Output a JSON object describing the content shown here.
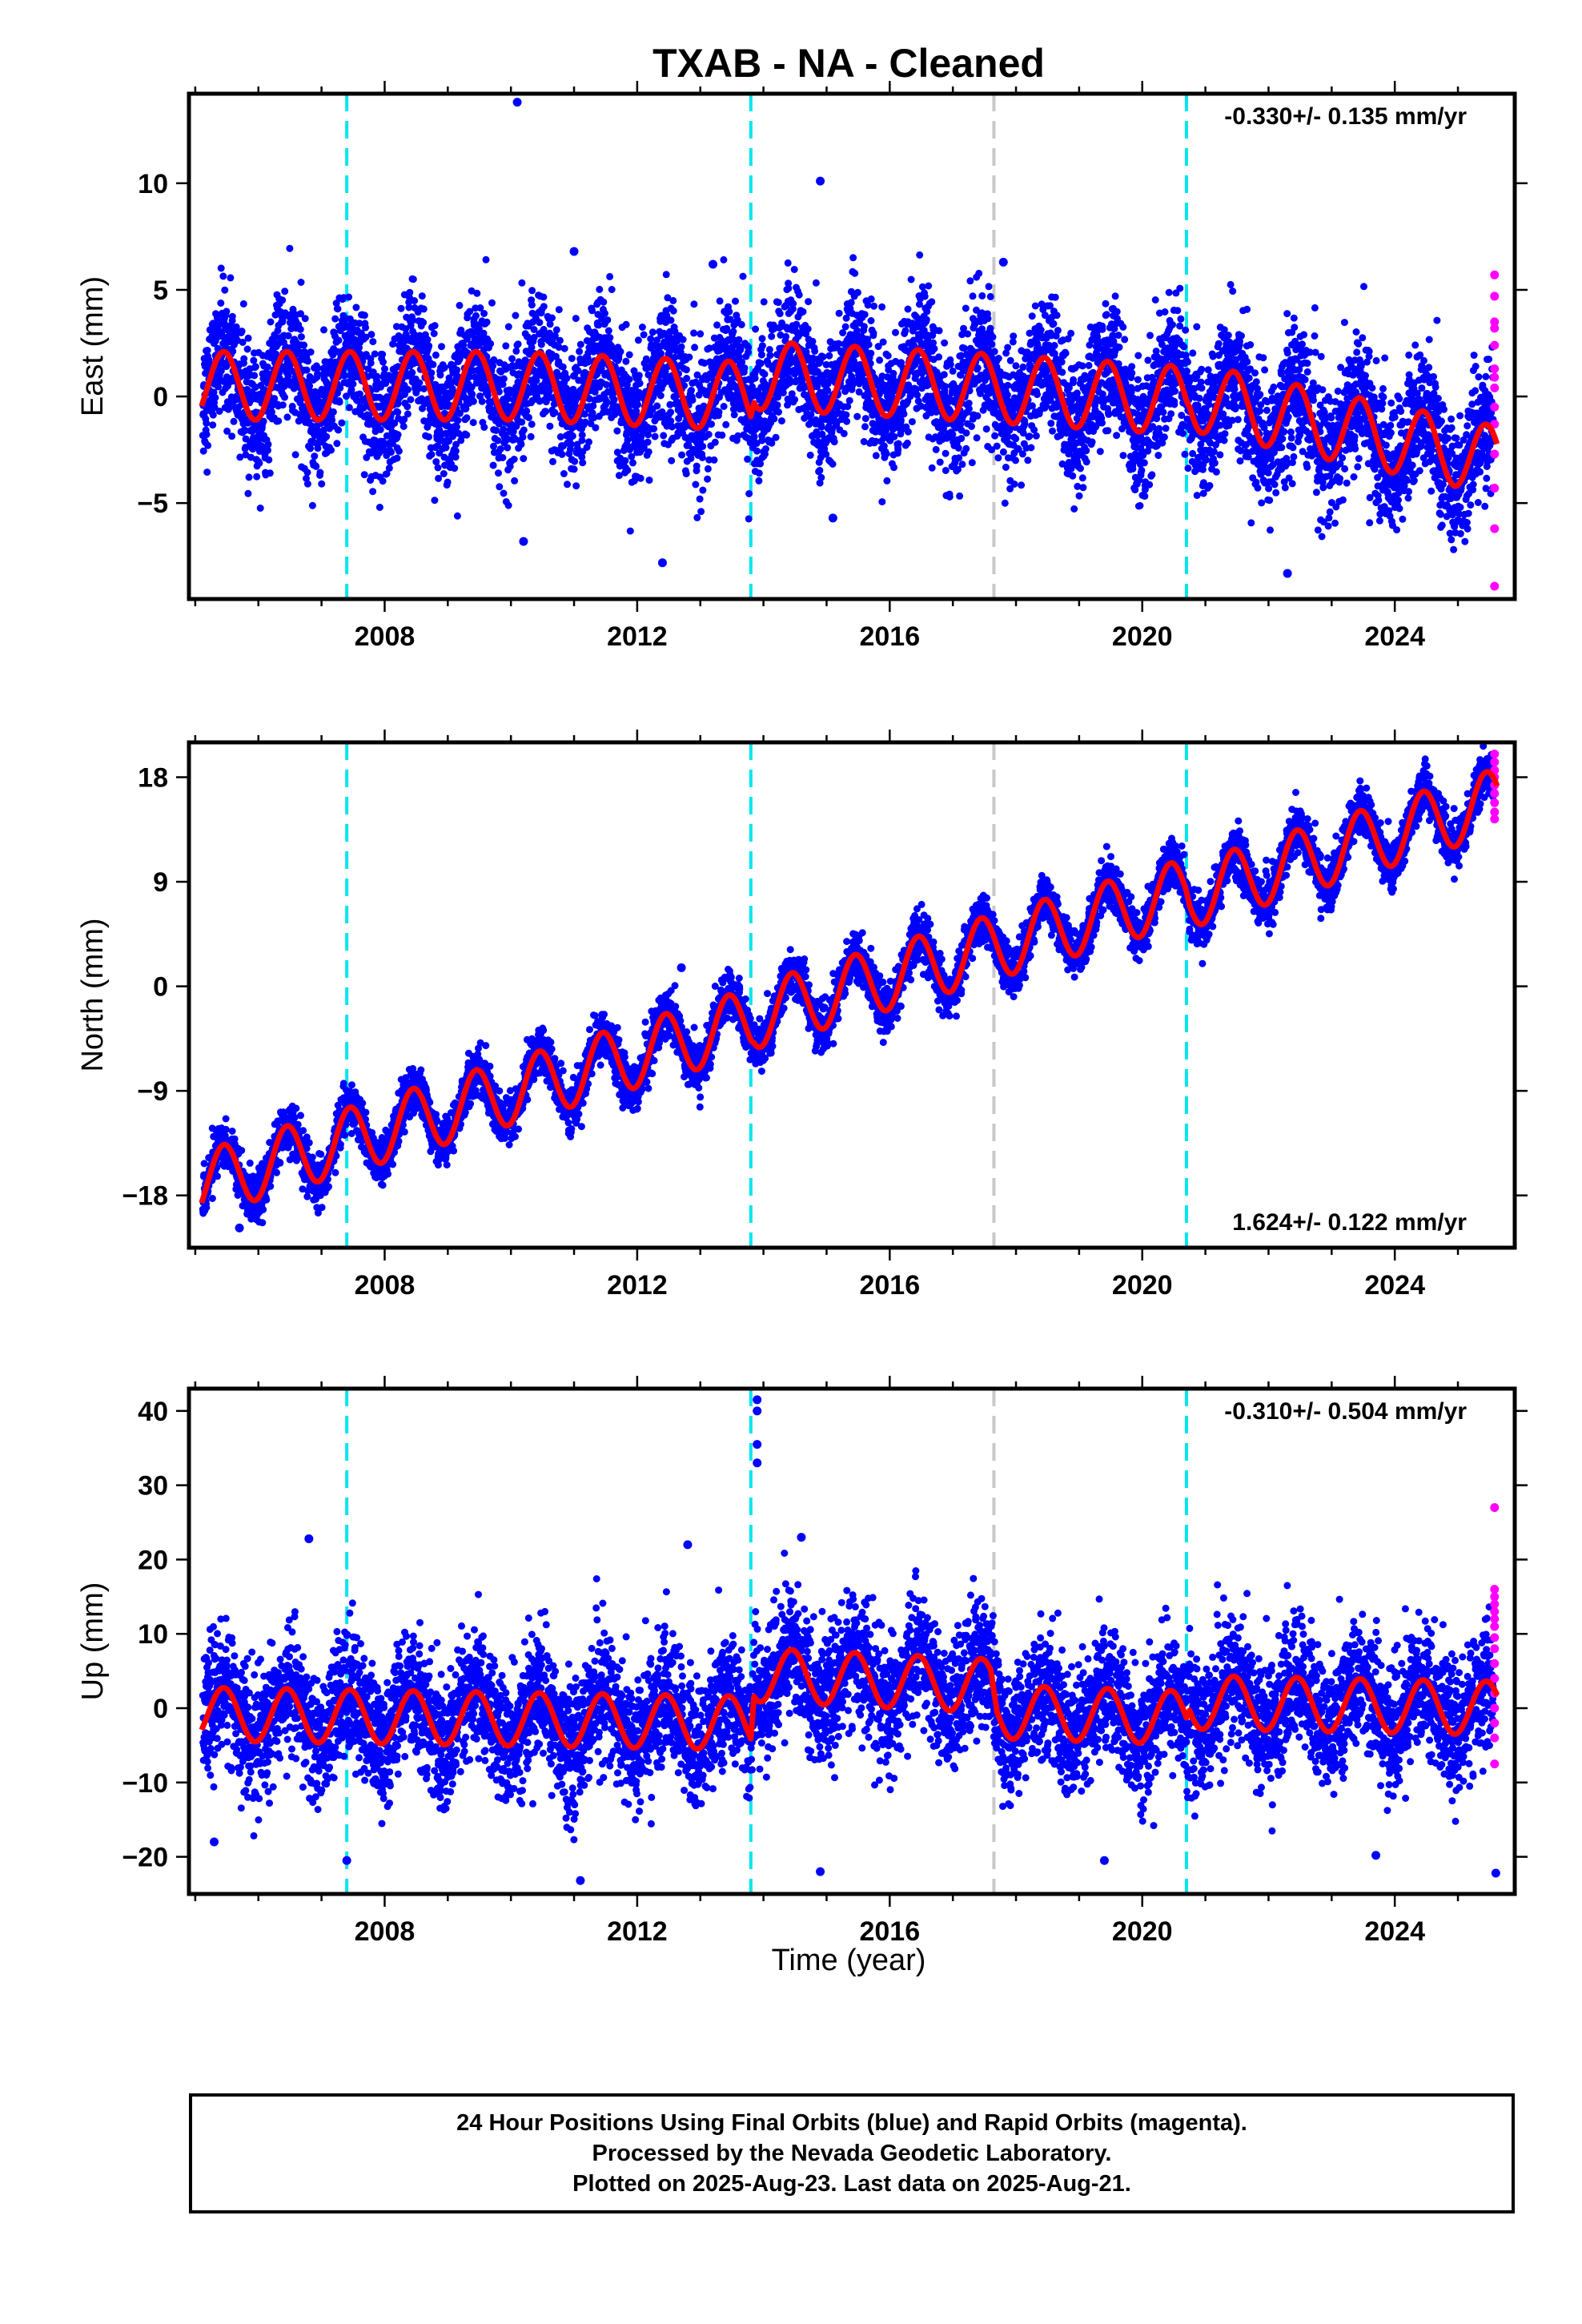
{
  "title": "TXAB  - NA - Cleaned",
  "xlabel": "Time (year)",
  "footer": [
    "24 Hour Positions Using Final Orbits (blue) and Rapid Orbits (magenta).",
    "Processed by the Nevada Geodetic Laboratory.",
    "Plotted on 2025-Aug-23. Last data on 2025-Aug-21."
  ],
  "colors": {
    "final": "#0000ff",
    "rapid": "#ff00ff",
    "model": "#ff0000",
    "equipment_change": "#00e5ee",
    "other_event": "#c8c8c8"
  },
  "chart_data": [
    {
      "type": "scatter",
      "component": "east",
      "ylabel": "East (mm)",
      "rate_label": "-0.330+/- 0.135 mm/yr",
      "xlim": [
        2004.9,
        2025.9
      ],
      "ylim": [
        -9.5,
        14.2
      ],
      "yticks": [
        -5,
        0,
        5,
        10
      ],
      "xticks": [
        2008,
        2012,
        2016,
        2020,
        2024
      ],
      "events_cyan": [
        2007.4,
        2013.8,
        2020.7
      ],
      "events_gray": [
        2017.65
      ],
      "trend_mm_per_yr": -0.33,
      "seasonal_amplitude_mm": 1.6,
      "scatter_sd_mm": 1.5,
      "model_knots": [
        [
          2005.1,
          0.5
        ],
        [
          2010.0,
          0.5
        ],
        [
          2013.8,
          0.0
        ],
        [
          2013.85,
          1.0
        ],
        [
          2017.0,
          0.5
        ],
        [
          2020.7,
          -0.2
        ],
        [
          2020.75,
          0.0
        ],
        [
          2025.6,
          -3.0
        ]
      ],
      "rapid_points": [
        5.7,
        4.7,
        3.5,
        3.2,
        2.4,
        1.3,
        0.9,
        0.4,
        -0.5,
        -1.3,
        -2.7,
        -4.3,
        -6.2,
        -8.9
      ],
      "outliers": [
        [
          2010.1,
          13.8
        ],
        [
          2014.9,
          10.1
        ],
        [
          2013.2,
          6.2
        ],
        [
          2011.0,
          6.8
        ],
        [
          2017.8,
          6.3
        ],
        [
          2012.4,
          -7.8
        ],
        [
          2010.2,
          -6.8
        ],
        [
          2022.3,
          -8.3
        ],
        [
          2015.1,
          -5.7
        ]
      ]
    },
    {
      "type": "scatter",
      "component": "north",
      "ylabel": "North (mm)",
      "rate_label": "1.624+/- 0.122 mm/yr",
      "xlim": [
        2004.9,
        2025.9
      ],
      "ylim": [
        -22.5,
        21.0
      ],
      "yticks": [
        -18,
        -9,
        0,
        9,
        18
      ],
      "xticks": [
        2008,
        2012,
        2016,
        2020,
        2024
      ],
      "events_cyan": [
        2007.4,
        2013.8,
        2020.7
      ],
      "events_gray": [
        2017.65
      ],
      "trend_mm_per_yr": 1.624,
      "seasonal_amplitude_mm": 2.8,
      "scatter_sd_mm": 1.0,
      "model_knots": [
        [
          2005.1,
          -17.0
        ],
        [
          2013.8,
          -3.0
        ],
        [
          2013.85,
          -2.6
        ],
        [
          2020.7,
          8.2
        ],
        [
          2020.75,
          7.8
        ],
        [
          2025.6,
          15.9
        ]
      ],
      "rapid_points": [
        20.0,
        19.3,
        18.6,
        18.0,
        17.3,
        16.6,
        15.8,
        15.0,
        14.4
      ],
      "outliers": [
        [
          2012.7,
          1.6
        ],
        [
          2007.2,
          -13.8
        ],
        [
          2005.7,
          -20.8
        ]
      ]
    },
    {
      "type": "scatter",
      "component": "up",
      "ylabel": "Up (mm)",
      "rate_label": "-0.310+/- 0.504 mm/yr",
      "xlim": [
        2004.9,
        2025.9
      ],
      "ylim": [
        -25,
        43
      ],
      "yticks": [
        -20,
        -10,
        0,
        10,
        20,
        30,
        40
      ],
      "xticks": [
        2008,
        2012,
        2016,
        2020,
        2024
      ],
      "events_cyan": [
        2007.4,
        2013.8,
        2020.7
      ],
      "events_gray": [
        2017.65
      ],
      "trend_mm_per_yr": -0.31,
      "seasonal_amplitude_mm": 3.6,
      "scatter_sd_mm": 4.2,
      "model_knots": [
        [
          2005.1,
          -0.8
        ],
        [
          2013.8,
          -2.0
        ],
        [
          2013.85,
          4.5
        ],
        [
          2017.6,
          3.0
        ],
        [
          2017.7,
          -0.5
        ],
        [
          2020.7,
          -1.3
        ],
        [
          2020.75,
          0.8
        ],
        [
          2025.6,
          0.0
        ]
      ],
      "rapid_points": [
        27.0,
        16.0,
        15.0,
        14.0,
        13.0,
        12.0,
        11.0,
        9.5,
        8.0,
        6.0,
        4.0,
        2.0,
        0.0,
        -2.0,
        -4.0,
        -7.5
      ],
      "outliers": [
        [
          2013.9,
          41.5
        ],
        [
          2013.9,
          40.0
        ],
        [
          2013.9,
          35.5
        ],
        [
          2013.9,
          33.0
        ],
        [
          2006.8,
          22.8
        ],
        [
          2012.8,
          22.0
        ],
        [
          2014.6,
          23.0
        ],
        [
          2011.1,
          -23.2
        ],
        [
          2014.9,
          -22.0
        ],
        [
          2025.6,
          -22.2
        ],
        [
          2005.3,
          -18.0
        ],
        [
          2007.4,
          -20.5
        ],
        [
          2019.4,
          -20.5
        ],
        [
          2023.7,
          -19.8
        ]
      ]
    }
  ]
}
